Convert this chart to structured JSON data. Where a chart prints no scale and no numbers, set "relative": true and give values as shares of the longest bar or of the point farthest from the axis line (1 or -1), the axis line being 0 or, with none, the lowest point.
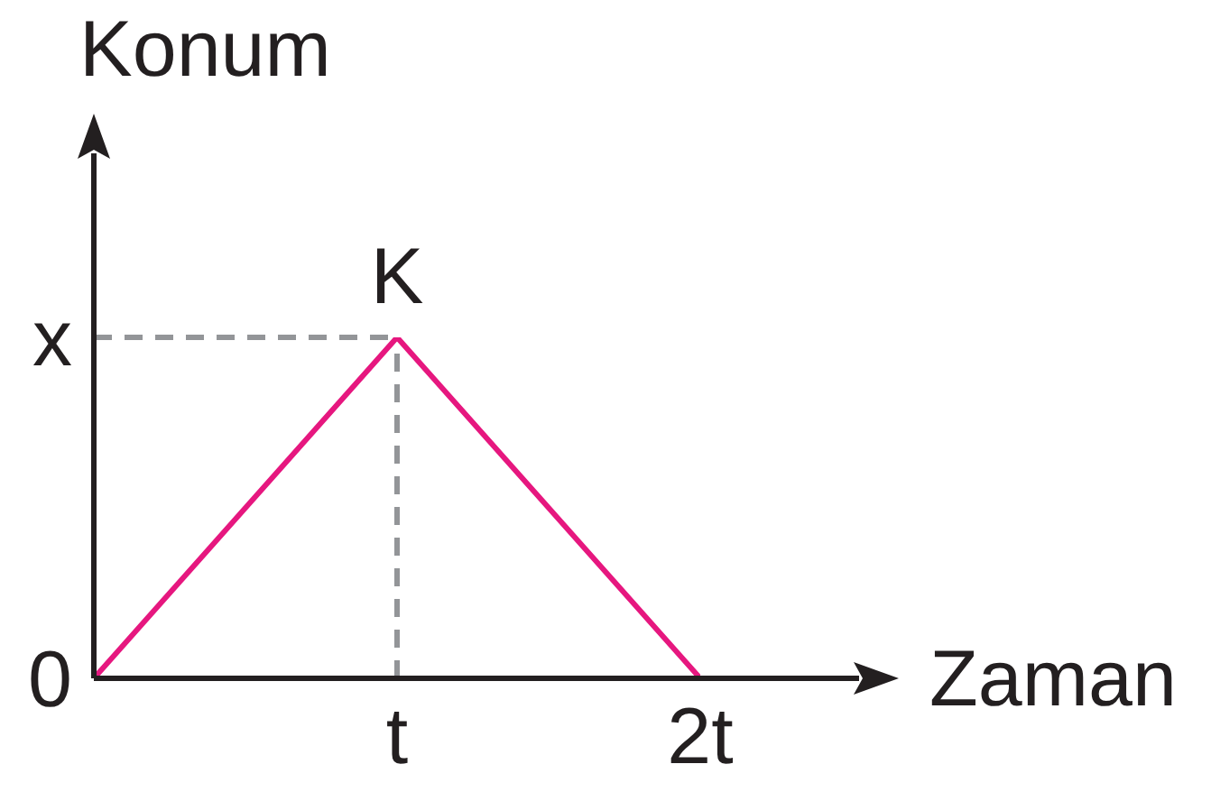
{
  "chart_data": {
    "type": "line",
    "xlabel": "Zaman",
    "ylabel": "Konum",
    "relative": true,
    "categories": [
      null,
      "t",
      "2t"
    ],
    "series": [
      {
        "color": "#e6177f",
        "values": [
          0,
          1,
          0
        ]
      }
    ],
    "ref_lines": [
      {
        "axis": "x",
        "value": "t",
        "color": "#939598",
        "line_style": "dashed"
      },
      {
        "axis": "y",
        "value": 1,
        "label": "x",
        "color": "#939598",
        "line_style": "dashed"
      }
    ],
    "annotations": [
      {
        "text": "K",
        "x": "t",
        "y": 1
      },
      "0"
    ],
    "grid": false,
    "legend": false,
    "marker": "none"
  }
}
